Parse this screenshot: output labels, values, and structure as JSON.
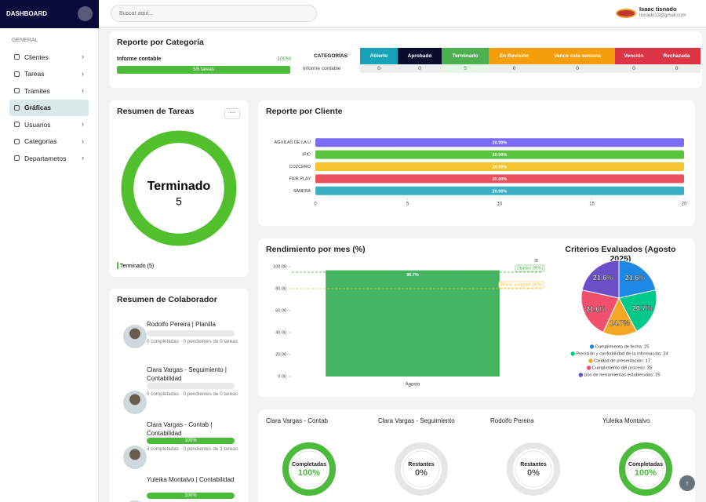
{
  "sidebar": {
    "brand": "DASHBOARD",
    "section": "GENERAL",
    "menu": [
      "Clientes",
      "Tareas",
      "Trámites",
      "Gráficas",
      "Usuarios",
      "Categorías",
      "Departametos"
    ]
  },
  "topbar": {
    "search_placeholder": "Buscar aquí...",
    "user_name": "Isaac tisnado",
    "user_email": "tisnado13@gmail.com"
  },
  "category_report": {
    "title": "Reporte por Categoría",
    "progress": {
      "label": "Informe contable",
      "value": 100,
      "value_label": "100%",
      "text": "5/5 tareas",
      "range": [
        0,
        100
      ]
    },
    "table": {
      "header": "CATEGORÍAS",
      "columns": [
        "Abierto",
        "Aprobado",
        "Terminado",
        "En Revisión",
        "Vence esta semana",
        "Vencido",
        "Rechazada"
      ],
      "colors": [
        "#17a2b8",
        "#0b0b2e",
        "#4caf50",
        "#f59e0b",
        "#f59e0b",
        "#dc3545",
        "#dc3545"
      ],
      "rows": [
        {
          "label": "Informe contable",
          "values": [
            0,
            0,
            5,
            0,
            0,
            0,
            0
          ]
        }
      ]
    }
  },
  "collaborators": {
    "title": "Resumen de Colaborador",
    "range": [
      0,
      100
    ],
    "items": [
      {
        "name": "Rodolfo Pereira | Planilla",
        "value": 0,
        "text": "0 completadas · 0 pendientes de 0 tareas"
      },
      {
        "name": "Clara Vargas - Seguimiento | Contabilidad",
        "value": 0,
        "text": "0 completadas · 0 pendientes de 0 tareas"
      },
      {
        "name": "Clara Vargas - Contab | Contabilidad",
        "value": 100,
        "value_label": "100%",
        "text": "3 completadas · 0 pendientes de 3 tareas"
      },
      {
        "name": "Yuleika Montalvo | Contabilidad",
        "value": 100,
        "value_label": "100%"
      }
    ]
  },
  "chart_data": [
    {
      "type": "donut",
      "title": "Resumen de Tareas",
      "categories": [
        "Terminado"
      ],
      "values": [
        5
      ],
      "colors": [
        "#52bf2c"
      ],
      "legend_labels": [
        "Terminado (5)"
      ]
    },
    {
      "type": "hbar",
      "title": "Reporte por Cliente",
      "categories": [
        "AGUILAS DE LA U",
        "IPIC",
        "COZCERO",
        "FAIR PLAY",
        "SANFRA"
      ],
      "values": [
        20,
        20,
        20,
        20,
        20
      ],
      "value_labels": [
        "20.00%",
        "20.00%",
        "20.00%",
        "20.00%",
        "20.00%"
      ],
      "colors": [
        "#7b6cf6",
        "#5ac43e",
        "#f5c431",
        "#e8505b",
        "#3bafc4"
      ],
      "xlim": [
        0,
        20
      ],
      "xticks": [
        0,
        5,
        10,
        15,
        20
      ]
    },
    {
      "type": "bar",
      "title": "Rendimiento por mes (%)",
      "categories": [
        "Agosto"
      ],
      "values": [
        96.7
      ],
      "value_labels": [
        "96.7%"
      ],
      "color": "#45b561",
      "ylim": [
        0,
        100
      ],
      "yticks": [
        {
          "value": 0,
          "label": "0.00"
        },
        {
          "value": 20,
          "label": "20.00"
        },
        {
          "value": 40,
          "label": "40.00"
        },
        {
          "value": 60,
          "label": "60.00"
        },
        {
          "value": 80,
          "label": "80.00"
        },
        {
          "value": 100,
          "label": "100.00"
        }
      ],
      "reference_lines": [
        {
          "value": 95,
          "label": "Objetivo (95%)",
          "color": "#3cb043"
        },
        {
          "value": 80,
          "label": "Mínimo aceptable (80%)",
          "color": "#f5c431"
        }
      ]
    },
    {
      "type": "pie",
      "title": "Criterios Evaluados (Agosto 2025)",
      "values": [
        21.6,
        20.7,
        14.7,
        21.6,
        21.6
      ],
      "value_labels": [
        "21.6%",
        "20.7%",
        "14.7%",
        "21.6%",
        "21.6%"
      ],
      "legend_labels": [
        "Cumplimiento de fecha: 25",
        "Precisión y confiabilidad de la información: 24",
        "Calidad de presentación: 17",
        "Cumplimiento del proceso: 25",
        "Uso de herramientas establecidas: 25"
      ],
      "colors": [
        "#1e88e5",
        "#00c98a",
        "#f5a623",
        "#f0506e",
        "#6a4fc9"
      ]
    },
    {
      "type": "gauge",
      "categories": [
        "Clara Vargas - Contab",
        "Clara Vargas - Seguimiento",
        "Rodolfo Pereira",
        "Yuleika Montalvo"
      ],
      "center_labels": [
        "Completadas",
        "Restantes",
        "Restantes",
        "Completadas"
      ],
      "values": [
        100,
        0,
        0,
        100
      ],
      "value_labels": [
        "100%",
        "0%",
        "0%",
        "100%"
      ],
      "ylim": [
        0,
        100
      ],
      "color": "#4cbb3c"
    }
  ]
}
